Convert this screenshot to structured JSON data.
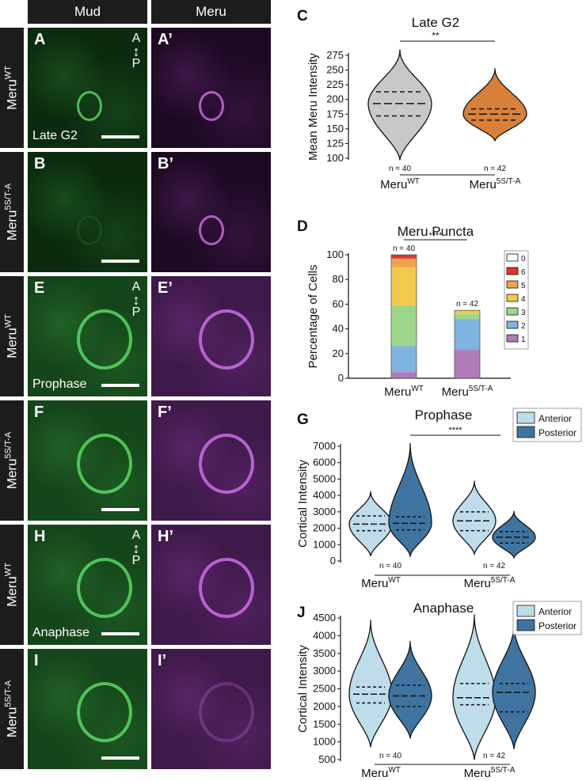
{
  "columns": [
    "Mud",
    "Meru"
  ],
  "rows": [
    {
      "genotype_base": "Meru",
      "genotype_sup": "WT",
      "stage": "Late G2",
      "labels": [
        "A",
        "A’"
      ],
      "axis": true
    },
    {
      "genotype_base": "Meru",
      "genotype_sup": "5S/T-A",
      "stage": "",
      "labels": [
        "B",
        "B’"
      ],
      "axis": false
    },
    {
      "genotype_base": "Meru",
      "genotype_sup": "WT",
      "stage": "Prophase",
      "labels": [
        "E",
        "E’"
      ],
      "axis": true
    },
    {
      "genotype_base": "Meru",
      "genotype_sup": "5S/T-A",
      "stage": "",
      "labels": [
        "F",
        "F’"
      ],
      "axis": false
    },
    {
      "genotype_base": "Meru",
      "genotype_sup": "WT",
      "stage": "Anaphase",
      "labels": [
        "H",
        "H’"
      ],
      "axis": true
    },
    {
      "genotype_base": "Meru",
      "genotype_sup": "5S/T-A",
      "stage": "",
      "labels": [
        "I",
        "I’"
      ],
      "axis": false
    }
  ],
  "axis_labels": {
    "a": "A",
    "p": "P"
  },
  "colors": {
    "mud": "#2fae3a",
    "meru": "#a035b6",
    "wt_violin": "#c8c8c8",
    "mut_violin": "#d9803a",
    "anterior": "#bfdcea",
    "posterior": "#3f74a0"
  },
  "chart_data": [
    {
      "panel": "C",
      "type": "violin",
      "title": "Late G2",
      "ylabel": "Mean Meru Intensity",
      "ylim": [
        100,
        275
      ],
      "yticks": [
        100,
        125,
        150,
        175,
        200,
        225,
        250,
        275
      ],
      "categories": [
        "Meru^WT",
        "Meru^5S/T-A"
      ],
      "cat_base": "Meru",
      "cat_sup": [
        "WT",
        "5S/T-A"
      ],
      "n_labels": [
        "n = 40",
        "n = 42"
      ],
      "significance": "**",
      "series": [
        {
          "name": "Meru^WT",
          "median": 193,
          "q1": 172,
          "q3": 213,
          "min": 97,
          "max": 285
        },
        {
          "name": "Meru^5S/T-A",
          "median": 175,
          "q1": 165,
          "q3": 184,
          "min": 130,
          "max": 253
        }
      ]
    },
    {
      "panel": "D",
      "type": "bar",
      "title": "Meru Puncta",
      "ylabel": "Percentage of Cells",
      "ylim": [
        0,
        100
      ],
      "yticks": [
        0,
        20,
        40,
        60,
        80,
        100
      ],
      "categories": [
        "Meru^WT",
        "Meru^5S/T-A"
      ],
      "cat_base": "Meru",
      "cat_sup": [
        "WT",
        "5S/T-A"
      ],
      "n_labels": [
        "n = 40",
        "n = 42"
      ],
      "significance": "****",
      "legend": [
        "0",
        "6",
        "5",
        "4",
        "3",
        "2",
        "1"
      ],
      "series": [
        {
          "name": "1",
          "color": "#b07ab9",
          "values": [
            5,
            23
          ]
        },
        {
          "name": "2",
          "color": "#7fb3e0",
          "values": [
            21,
            25
          ]
        },
        {
          "name": "3",
          "color": "#9ed68c",
          "values": [
            33,
            4
          ]
        },
        {
          "name": "4",
          "color": "#f0c94d",
          "values": [
            31,
            3
          ]
        },
        {
          "name": "5",
          "color": "#f0a24c",
          "values": [
            7,
            0
          ]
        },
        {
          "name": "6",
          "color": "#e0332c",
          "values": [
            3,
            0
          ]
        },
        {
          "name": "0",
          "color": "#ffffff",
          "values": [
            0,
            0
          ]
        }
      ]
    },
    {
      "panel": "G",
      "type": "violin",
      "title": "Prophase",
      "ylabel": "Cortical Intensity",
      "ylim": [
        0,
        7000
      ],
      "yticks": [
        0,
        1000,
        2000,
        3000,
        4000,
        5000,
        6000,
        7000
      ],
      "categories": [
        "Meru^WT",
        "Meru^5S/T-A"
      ],
      "cat_base": "Meru",
      "cat_sup": [
        "WT",
        "5S/T-A"
      ],
      "n_labels": [
        "n = 40",
        "n = 42"
      ],
      "significance": "****",
      "legend": [
        "Anterior",
        "Posterior"
      ],
      "series": [
        {
          "name": "Anterior",
          "group": 0,
          "median": 2250,
          "q1": 1850,
          "q3": 2750,
          "min": 300,
          "max": 4250
        },
        {
          "name": "Posterior",
          "group": 0,
          "median": 2300,
          "q1": 1900,
          "q3": 2700,
          "min": 300,
          "max": 7200
        },
        {
          "name": "Anterior",
          "group": 1,
          "median": 2450,
          "q1": 1850,
          "q3": 3000,
          "min": 400,
          "max": 4900
        },
        {
          "name": "Posterior",
          "group": 1,
          "median": 1450,
          "q1": 1100,
          "q3": 1800,
          "min": 200,
          "max": 3050
        }
      ]
    },
    {
      "panel": "J",
      "type": "violin",
      "title": "Anaphase",
      "ylabel": "Cortical Intensity",
      "ylim": [
        500,
        4500
      ],
      "yticks": [
        500,
        1000,
        1500,
        2000,
        2500,
        3000,
        3500,
        4000,
        4500
      ],
      "categories": [
        "Meru^WT",
        "Meru^5S/T-A"
      ],
      "cat_base": "Meru",
      "cat_sup": [
        "WT",
        "5S/T-A"
      ],
      "n_labels": [
        "n = 40",
        "n = 42"
      ],
      "significance": "",
      "legend": [
        "Anterior",
        "Posterior"
      ],
      "series": [
        {
          "name": "Anterior",
          "group": 0,
          "median": 2350,
          "q1": 2100,
          "q3": 2550,
          "min": 850,
          "max": 4450
        },
        {
          "name": "Posterior",
          "group": 0,
          "median": 2300,
          "q1": 2000,
          "q3": 2600,
          "min": 1100,
          "max": 3850
        },
        {
          "name": "Anterior",
          "group": 1,
          "median": 2250,
          "q1": 2050,
          "q3": 2650,
          "min": 500,
          "max": 4600
        },
        {
          "name": "Posterior",
          "group": 1,
          "median": 2400,
          "q1": 1850,
          "q3": 2650,
          "min": 800,
          "max": 4350
        }
      ]
    }
  ]
}
